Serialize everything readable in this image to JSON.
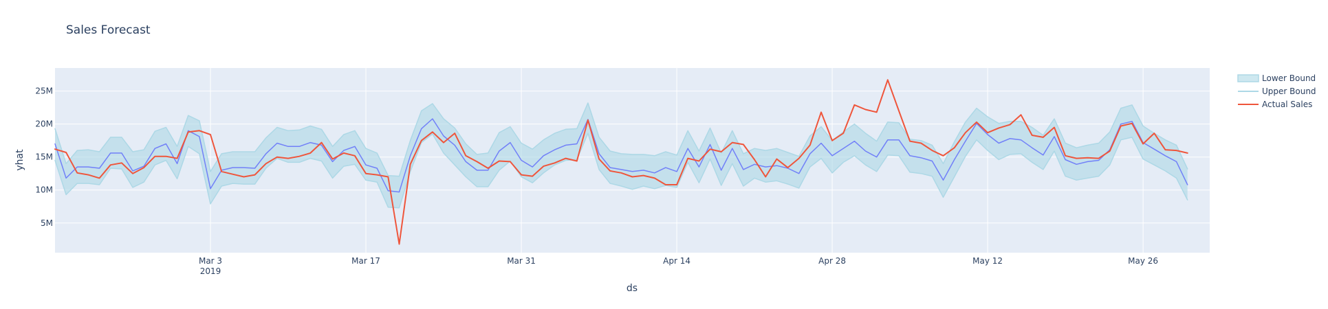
{
  "chart_data": {
    "type": "line",
    "title": "Sales Forecast",
    "xlabel": "ds",
    "ylabel": "yhat",
    "x_start": "2019-02-17",
    "x_end": "2019-06-01",
    "xlim": [
      "2019-02-17",
      "2019-06-01"
    ],
    "ylim": [
      0.5,
      28.5
    ],
    "y_unit": "millions",
    "x_ticks": [
      {
        "date": "2019-03-03",
        "label": "Mar 3",
        "sublabel": "2019"
      },
      {
        "date": "2019-03-17",
        "label": "Mar 17",
        "sublabel": ""
      },
      {
        "date": "2019-03-31",
        "label": "Mar 31",
        "sublabel": ""
      },
      {
        "date": "2019-04-14",
        "label": "Apr 14",
        "sublabel": ""
      },
      {
        "date": "2019-04-28",
        "label": "Apr 28",
        "sublabel": ""
      },
      {
        "date": "2019-05-12",
        "label": "May 12",
        "sublabel": ""
      },
      {
        "date": "2019-05-26",
        "label": "May 26",
        "sublabel": ""
      }
    ],
    "y_ticks": [
      {
        "value": 5,
        "label": "5M"
      },
      {
        "value": 10,
        "label": "10M"
      },
      {
        "value": 15,
        "label": "15M"
      },
      {
        "value": 20,
        "label": "20M"
      },
      {
        "value": 25,
        "label": "25M"
      }
    ],
    "grid": true,
    "legend_position": "top-right",
    "series": [
      {
        "name": "Lower Bound",
        "color": "#add8e6",
        "values": [
          14.5,
          9.3,
          11,
          11,
          10.8,
          13.3,
          13.2,
          10.4,
          11.2,
          13.8,
          14.5,
          11.7,
          16.6,
          15.5,
          7.9,
          10.6,
          11,
          10.9,
          10.9,
          13.3,
          14.8,
          14.2,
          14.2,
          14.8,
          14.4,
          11.8,
          13.6,
          13.9,
          11.5,
          11.2,
          7.4,
          7.3,
          12.8,
          17.2,
          18.5,
          15.6,
          13.8,
          12,
          10.5,
          10.5,
          13,
          14.4,
          12,
          11.1,
          12.6,
          13.8,
          14.5,
          14.6,
          18.6,
          13.1,
          11,
          10.6,
          10.1,
          10.6,
          10.2,
          10.7,
          10.4,
          14.2,
          11.1,
          14.7,
          10.7,
          14,
          10.6,
          11.8,
          11.2,
          11.4,
          10.9,
          10.3,
          13.5,
          14.8,
          12.6,
          14.2,
          15.2,
          13.8,
          12.8,
          15.3,
          15.2,
          12.7,
          12.5,
          12.1,
          8.9,
          12,
          15.1,
          17.6,
          16,
          14.6,
          15.4,
          15.5,
          14.2,
          13.1,
          15.9,
          12.1,
          11.5,
          11.8,
          12.1,
          13.8,
          17.6,
          18,
          14.7,
          13.8,
          12.9,
          11.8,
          8.5
        ]
      },
      {
        "name": "Upper Bound",
        "color": "#add8e6",
        "values": [
          19.3,
          14,
          16,
          16.1,
          15.8,
          18,
          18,
          15.8,
          16.1,
          18.9,
          19.5,
          16.6,
          21.3,
          20.5,
          12.8,
          15.5,
          15.8,
          15.8,
          15.8,
          17.9,
          19.5,
          19,
          19.1,
          19.7,
          19.2,
          16.6,
          18.4,
          19,
          16.3,
          15.6,
          12.2,
          12.1,
          17.5,
          22,
          23.1,
          20.8,
          19.4,
          17,
          15.4,
          15.6,
          18.7,
          19.6,
          17.1,
          16.2,
          17.6,
          18.6,
          19.2,
          19.3,
          23.2,
          18,
          15.9,
          15.5,
          15.4,
          15.4,
          15.2,
          15.8,
          15.3,
          19,
          15.9,
          19.4,
          15.6,
          19,
          15.5,
          16.3,
          16,
          16.3,
          15.7,
          15.1,
          18.2,
          19.6,
          17.5,
          18.8,
          20,
          18.6,
          17.4,
          20.3,
          20.2,
          17.7,
          17.5,
          16.8,
          14,
          17.3,
          20.3,
          22.4,
          21.1,
          20.1,
          20.4,
          20.4,
          19.5,
          18.3,
          20.8,
          17.1,
          16.4,
          16.8,
          17.1,
          18.8,
          22.4,
          22.9,
          19.7,
          18.6,
          17.6,
          16.8,
          13.2
        ]
      },
      {
        "name": "yhat",
        "color": "#636efa",
        "values": [
          17,
          11.8,
          13.5,
          13.5,
          13.3,
          15.6,
          15.6,
          12.9,
          13.6,
          16.3,
          17,
          14,
          19,
          18.1,
          10.2,
          13,
          13.4,
          13.4,
          13.3,
          15.5,
          17.1,
          16.6,
          16.6,
          17.2,
          16.8,
          14.3,
          16,
          16.6,
          13.8,
          13.3,
          9.9,
          9.7,
          15.2,
          19.3,
          20.8,
          18.2,
          16.8,
          14.3,
          13,
          13,
          15.9,
          17.2,
          14.5,
          13.5,
          15.2,
          16.1,
          16.8,
          17,
          20.7,
          15.5,
          13.4,
          13.1,
          12.8,
          13,
          12.6,
          13.4,
          12.8,
          16.3,
          13.5,
          16.9,
          13,
          16.3,
          13.1,
          13.9,
          13.5,
          13.7,
          13.3,
          12.5,
          15.5,
          17.1,
          15.2,
          16.3,
          17.4,
          15.9,
          15,
          17.6,
          17.6,
          15.2,
          14.9,
          14.4,
          11.5,
          14.6,
          17.4,
          20.1,
          18.4,
          17.1,
          17.8,
          17.6,
          16.4,
          15.3,
          18.1,
          14.6,
          13.9,
          14.3,
          14.5,
          16.1,
          20,
          20.4,
          17.2,
          16.2,
          15.2,
          14.3,
          10.8
        ]
      },
      {
        "name": "Actual Sales",
        "color": "#ef553b",
        "values": [
          16.2,
          15.7,
          12.6,
          12.3,
          11.8,
          13.8,
          14.1,
          12.5,
          13.4,
          15.1,
          15.1,
          14.8,
          18.8,
          19,
          18.4,
          12.8,
          12.4,
          12,
          12.3,
          14,
          15,
          14.8,
          15.1,
          15.6,
          17.2,
          14.7,
          15.6,
          15.2,
          12.5,
          12.3,
          12,
          1.8,
          13.9,
          17.5,
          18.8,
          17.2,
          18.6,
          15.2,
          14.3,
          13.3,
          14.4,
          14.3,
          12.3,
          12.1,
          13.6,
          14.1,
          14.8,
          14.4,
          20.6,
          14.7,
          12.9,
          12.6,
          12,
          12.2,
          11.8,
          10.8,
          10.8,
          14.8,
          14.4,
          16.2,
          15.8,
          17.2,
          16.9,
          14.6,
          12,
          14.7,
          13.4,
          14.8,
          16.8,
          21.8,
          17.5,
          18.6,
          22.9,
          22.2,
          21.8,
          26.7,
          22,
          17.4,
          17.1,
          16,
          15.2,
          16.4,
          18.7,
          20.3,
          18.7,
          19.4,
          19.9,
          21.4,
          18.3,
          18,
          19.5,
          15.2,
          14.8,
          14.9,
          14.8,
          15.9,
          19.7,
          20.1,
          17,
          18.6,
          16.1,
          16,
          15.6
        ]
      }
    ]
  }
}
